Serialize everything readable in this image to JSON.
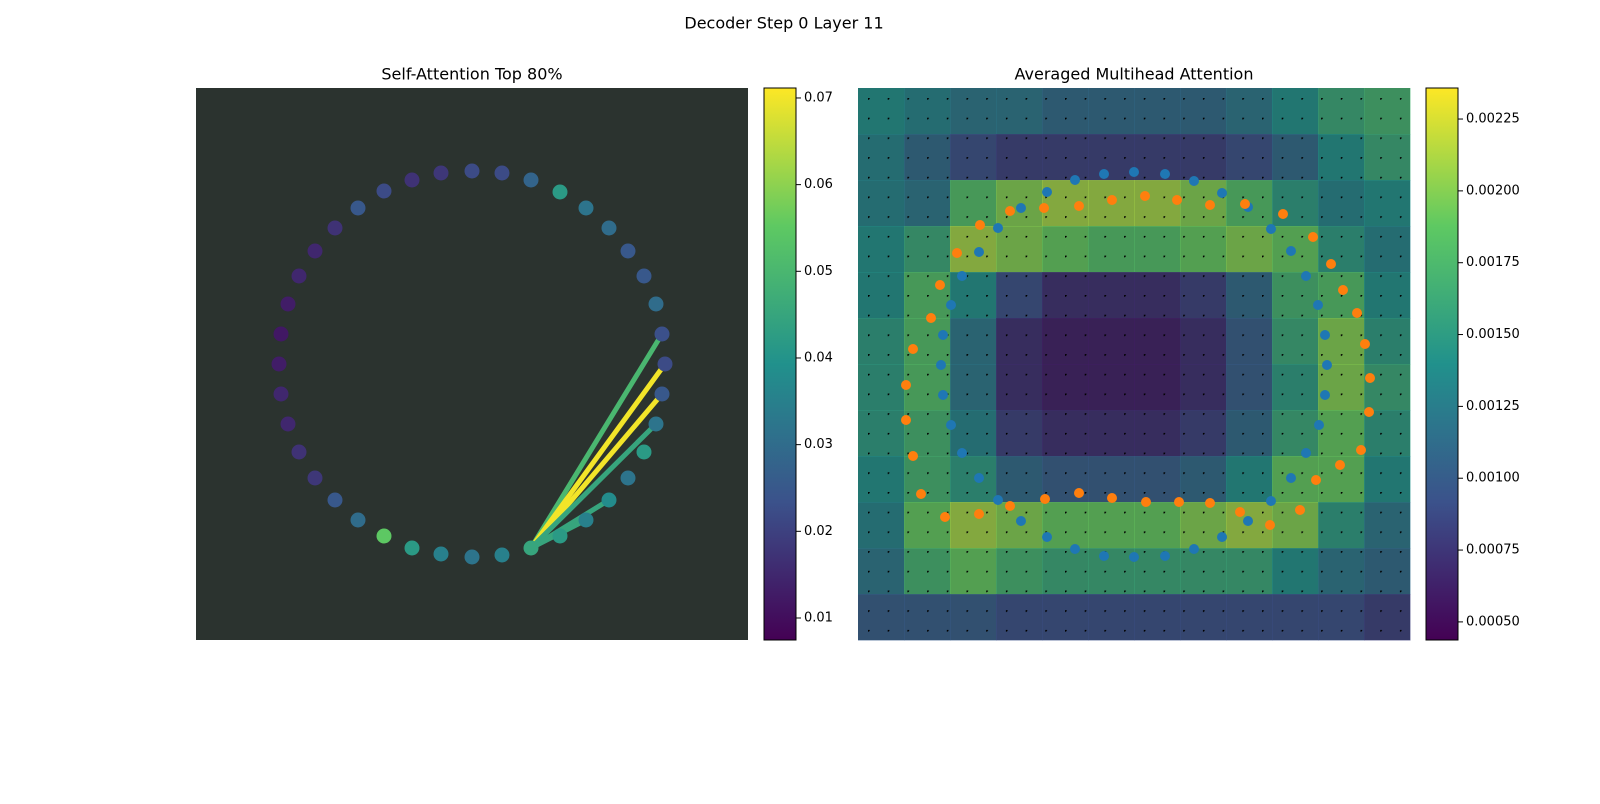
{
  "title": "Decoder Step 0 Layer 11",
  "chart_data": [
    {
      "type": "scatter",
      "title": "Self-Attention Top 80%",
      "xlim": [
        0,
        552
      ],
      "ylim": [
        552,
        0
      ],
      "x": [
        335,
        364,
        390,
        413,
        432,
        448,
        460,
        466,
        469,
        466,
        460,
        448,
        432,
        413,
        390,
        364,
        335,
        306,
        276,
        245,
        216,
        188,
        162,
        139,
        119,
        103,
        92,
        85,
        83,
        85,
        92,
        103,
        119,
        139,
        162,
        188,
        216,
        245,
        276,
        306
      ],
      "y": [
        460,
        448,
        432,
        412,
        390,
        364,
        336,
        306,
        276,
        246,
        216,
        188,
        163,
        140,
        120,
        104,
        92,
        85,
        83,
        85,
        92,
        103,
        120,
        140,
        163,
        188,
        216,
        246,
        276,
        306,
        336,
        364,
        390,
        412,
        432,
        448,
        460,
        466,
        469,
        467
      ],
      "values": [
        0.045,
        0.042,
        0.035,
        0.038,
        0.032,
        0.042,
        0.032,
        0.025,
        0.022,
        0.023,
        0.03,
        0.025,
        0.025,
        0.03,
        0.032,
        0.042,
        0.028,
        0.022,
        0.022,
        0.018,
        0.017,
        0.022,
        0.025,
        0.017,
        0.015,
        0.015,
        0.013,
        0.012,
        0.013,
        0.015,
        0.015,
        0.017,
        0.018,
        0.025,
        0.03,
        0.055,
        0.042,
        0.035,
        0.032,
        0.035
      ],
      "links_to": [
        9,
        8,
        7,
        6,
        3,
        2
      ],
      "link_values": [
        0.05,
        0.07,
        0.07,
        0.045,
        0.045,
        0.045
      ],
      "clim": [
        0.00746,
        0.07115
      ],
      "cticks": [
        0.01,
        0.02,
        0.03,
        0.04,
        0.05,
        0.06,
        0.07
      ]
    },
    {
      "type": "heatmap",
      "title": "Averaged Multihead Attention",
      "xlim": [
        0,
        552
      ],
      "ylim": [
        552,
        0
      ],
      "z": [
        [
          0.0014,
          0.0013,
          0.0012,
          0.0012,
          0.0011,
          0.0011,
          0.0011,
          0.0011,
          0.0012,
          0.0014,
          0.0016,
          0.0017
        ],
        [
          0.0013,
          0.0011,
          0.0009,
          0.0008,
          0.0008,
          0.0008,
          0.0008,
          0.0008,
          0.0009,
          0.0011,
          0.0014,
          0.0016
        ],
        [
          0.0013,
          0.0012,
          0.0018,
          0.002,
          0.0021,
          0.0021,
          0.0021,
          0.002,
          0.0018,
          0.0015,
          0.0013,
          0.0014
        ],
        [
          0.0014,
          0.0016,
          0.0021,
          0.002,
          0.0019,
          0.0018,
          0.0018,
          0.0019,
          0.002,
          0.0019,
          0.0015,
          0.0013
        ],
        [
          0.0014,
          0.0018,
          0.0014,
          0.0009,
          0.0007,
          0.0007,
          0.0007,
          0.0008,
          0.0011,
          0.0017,
          0.0018,
          0.0014
        ],
        [
          0.0015,
          0.0018,
          0.0012,
          0.0007,
          0.0006,
          0.0006,
          0.0006,
          0.0007,
          0.001,
          0.0016,
          0.002,
          0.0015
        ],
        [
          0.0015,
          0.0018,
          0.0012,
          0.0007,
          0.0006,
          0.0006,
          0.0006,
          0.0007,
          0.001,
          0.0015,
          0.002,
          0.0016
        ],
        [
          0.0015,
          0.0017,
          0.0013,
          0.0008,
          0.0007,
          0.0007,
          0.0007,
          0.0008,
          0.0011,
          0.0016,
          0.0019,
          0.0015
        ],
        [
          0.0014,
          0.0017,
          0.0015,
          0.0011,
          0.001,
          0.001,
          0.001,
          0.0011,
          0.0014,
          0.0019,
          0.0019,
          0.0014
        ],
        [
          0.0013,
          0.0019,
          0.0021,
          0.002,
          0.0019,
          0.0019,
          0.0019,
          0.002,
          0.0021,
          0.002,
          0.0015,
          0.0012
        ],
        [
          0.0012,
          0.0017,
          0.0019,
          0.0017,
          0.0016,
          0.0016,
          0.0016,
          0.0016,
          0.0016,
          0.0014,
          0.0012,
          0.0011
        ],
        [
          0.001,
          0.001,
          0.001,
          0.0009,
          0.0009,
          0.0009,
          0.0009,
          0.0009,
          0.0009,
          0.0009,
          0.0009,
          0.0008
        ]
      ],
      "series": [
        {
          "color": "#1f77b4",
          "x": [
            140,
            163,
            189,
            217,
            246,
            276,
            307,
            336,
            364,
            390,
            413,
            433,
            448,
            460,
            467,
            469,
            467,
            461,
            448,
            433,
            413,
            390,
            364,
            336,
            307,
            276,
            246,
            217,
            189,
            163,
            140,
            121,
            104,
            93,
            85,
            83,
            85,
            93,
            104,
            121
          ],
          "y": [
            140,
            120,
            104,
            92,
            86,
            84,
            86,
            93,
            105,
            119,
            141,
            163,
            188,
            217,
            247,
            277,
            307,
            337,
            365,
            390,
            413,
            433,
            449,
            461,
            468,
            469,
            468,
            461,
            449,
            433,
            412,
            390,
            365,
            337,
            307,
            277,
            247,
            217,
            188,
            164
          ]
        },
        {
          "color": "#ff7f0e",
          "x": [
            48,
            48,
            55,
            63,
            87,
            121,
            152,
            187,
            221,
            254,
            288,
            321,
            352,
            382,
            412,
            442,
            458,
            482,
            503,
            511,
            512,
            507,
            499,
            485,
            473,
            455,
            425,
            387,
            352,
            319,
            287,
            254,
            221,
            186,
            152,
            122,
            99,
            82,
            73,
            55
          ],
          "y": [
            297,
            332,
            368,
            406,
            429,
            426,
            418,
            411,
            405,
            410,
            414,
            414,
            415,
            424,
            437,
            422,
            392,
            377,
            362,
            324,
            290,
            256,
            225,
            202,
            176,
            149,
            126,
            116,
            117,
            112,
            108,
            112,
            118,
            120,
            123,
            137,
            165,
            197,
            230,
            261
          ]
        }
      ],
      "clim": [
        0.000437,
        0.002358
      ],
      "cticks": [
        {
          "value": 0.0005,
          "label": "0.00050"
        },
        {
          "value": 0.00075,
          "label": "0.00075"
        },
        {
          "value": 0.001,
          "label": "0.00100"
        },
        {
          "value": 0.00125,
          "label": "0.00125"
        },
        {
          "value": 0.0015,
          "label": "0.00150"
        },
        {
          "value": 0.00175,
          "label": "0.00175"
        },
        {
          "value": 0.002,
          "label": "0.00200"
        },
        {
          "value": 0.00225,
          "label": "0.00225"
        }
      ]
    }
  ]
}
